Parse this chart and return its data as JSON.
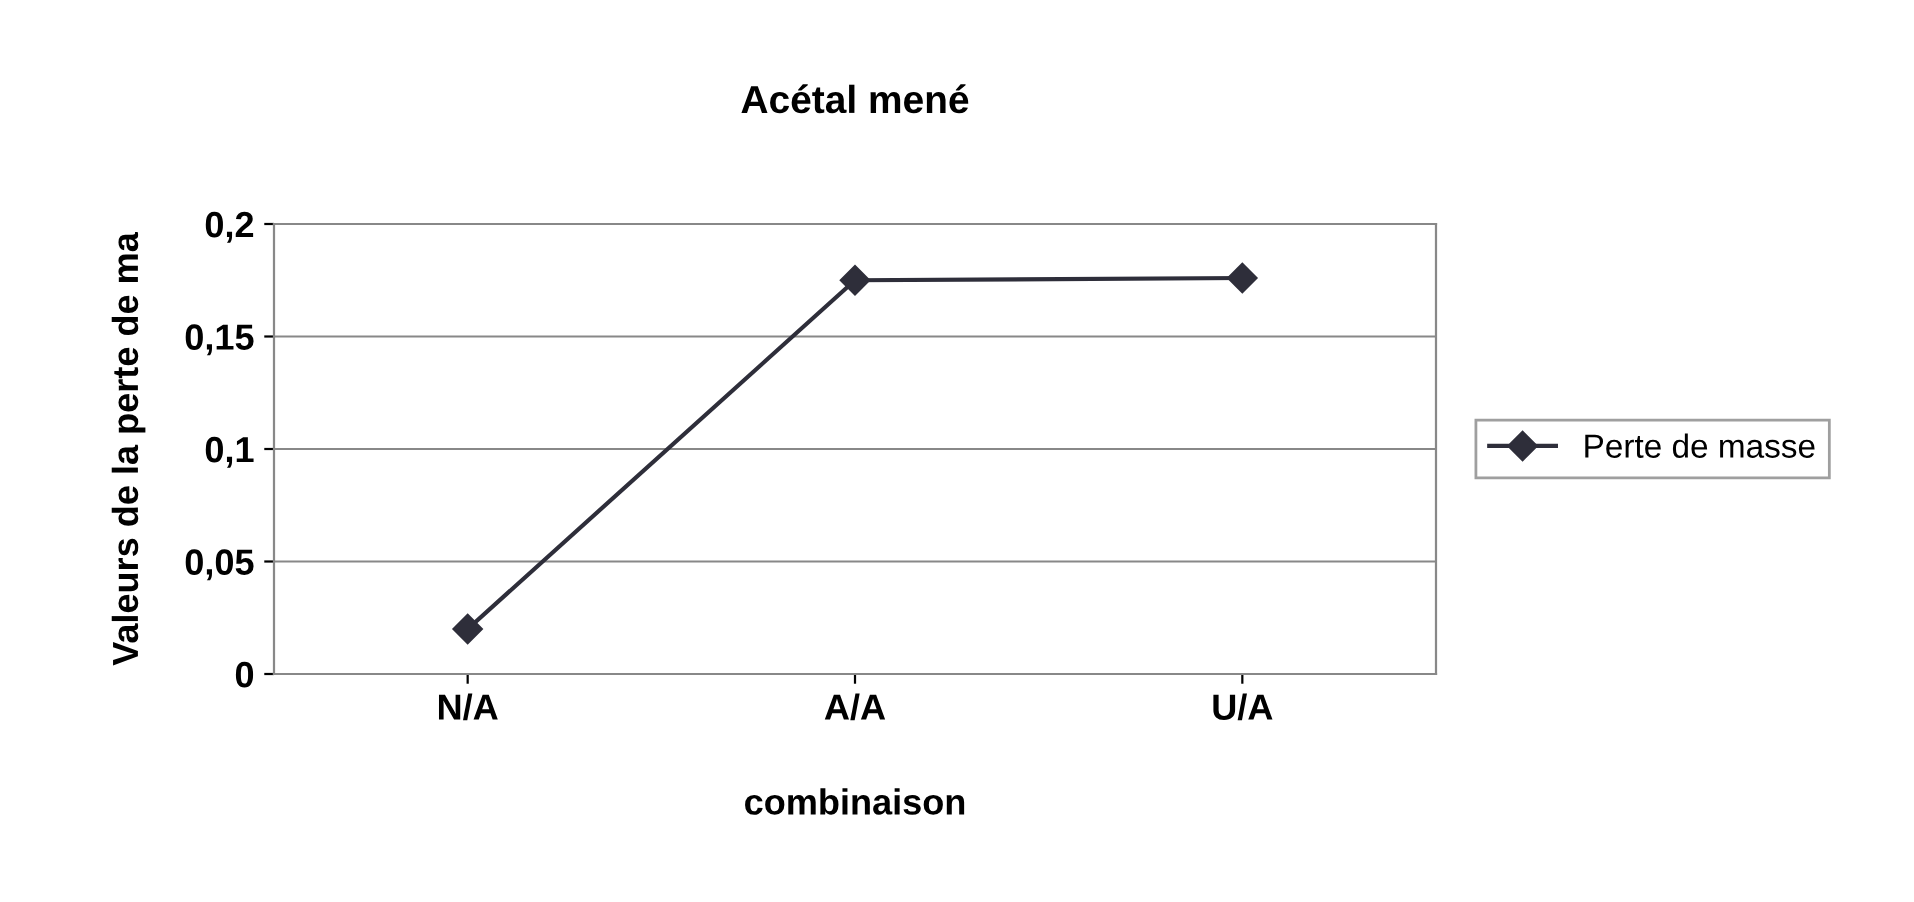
{
  "chart_data": {
    "type": "line",
    "title": "Acétal mené",
    "xlabel": "combinaison",
    "ylabel": "Valeurs de la perte de ma",
    "categories": [
      "N/A",
      "A/A",
      "U/A"
    ],
    "series": [
      {
        "name": "Perte de masse",
        "color": "#2e2e3a",
        "values": [
          0.02,
          0.175,
          0.176
        ]
      }
    ],
    "ylim": [
      0,
      0.2
    ],
    "yticks": [
      0,
      {
        "value": 0.05,
        "label": "0,05"
      },
      {
        "value": 0.1,
        "label": "0,1"
      },
      {
        "value": 0.15,
        "label": "0,15"
      },
      {
        "value": 0.2,
        "label": "0,2"
      }
    ],
    "grid": "y",
    "legend": "right",
    "marker": "diamond",
    "line_style": "solid"
  }
}
